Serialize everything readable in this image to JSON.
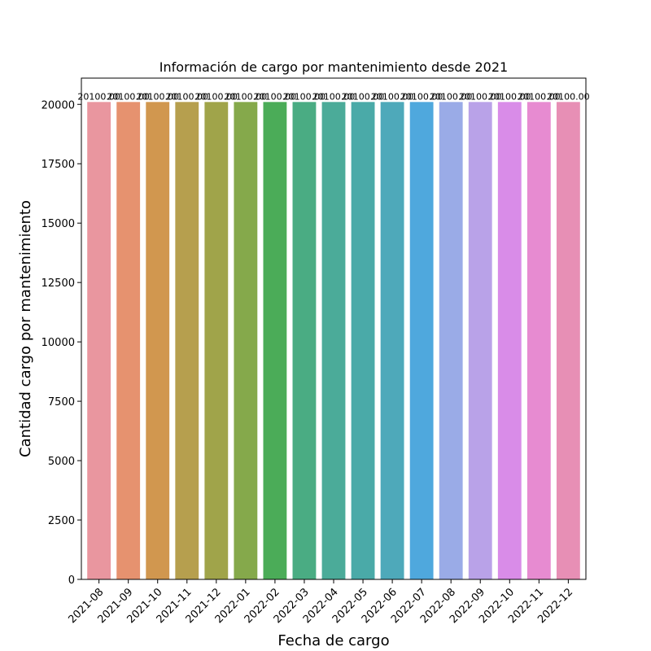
{
  "chart_data": {
    "type": "bar",
    "title": "Información de cargo por mantenimiento desde 2021",
    "xlabel": "Fecha de cargo",
    "ylabel": "Cantidad cargo por mantenimiento",
    "categories": [
      "2021-08",
      "2021-09",
      "2021-10",
      "2021-11",
      "2021-12",
      "2022-01",
      "2022-02",
      "2022-03",
      "2022-04",
      "2022-05",
      "2022-06",
      "2022-07",
      "2022-08",
      "2022-09",
      "2022-10",
      "2022-11",
      "2022-12"
    ],
    "values": [
      20100,
      20100,
      20100,
      20100,
      20100,
      20100,
      20100,
      20100,
      20100,
      20100,
      20100,
      20100,
      20100,
      20100,
      20100,
      20100,
      20100
    ],
    "data_labels": [
      "20100.00",
      "20100.00",
      "20100.00",
      "20100.00",
      "20100.00",
      "20100.00",
      "20100.00",
      "20100.00",
      "20100.00",
      "20100.00",
      "20100.00",
      "20100.00",
      "20100.00",
      "20100.00",
      "20100.00",
      "20100.00",
      "20100.00"
    ],
    "ylim": [
      0,
      21105
    ],
    "yticks": [
      0,
      2500,
      5000,
      7500,
      10000,
      12500,
      15000,
      17500,
      20000
    ],
    "colors": [
      "#e9969f",
      "#e6926f",
      "#d1974f",
      "#b69f4e",
      "#a0a44a",
      "#85a94b",
      "#4bac58",
      "#4aac83",
      "#4bab99",
      "#4aaaa8",
      "#4ea9ba",
      "#4fa8dd",
      "#9aabe7",
      "#b9a2e8",
      "#d98ce8",
      "#e78bd1",
      "#e78fb5"
    ],
    "grid": false,
    "legend": "none"
  }
}
